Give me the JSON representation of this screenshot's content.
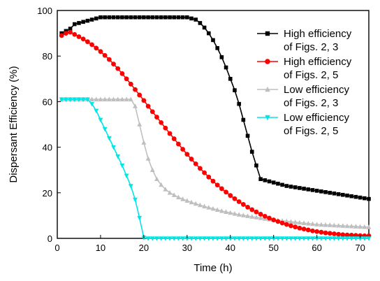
{
  "chart_data": {
    "type": "line",
    "xlabel": "Time (h)",
    "ylabel": "Dispersant Efficiency (%)",
    "xlim": [
      0,
      72
    ],
    "ylim": [
      0,
      100
    ],
    "x_ticks": [
      0,
      10,
      20,
      30,
      40,
      50,
      60,
      70
    ],
    "y_ticks": [
      0,
      20,
      40,
      60,
      80,
      100
    ],
    "grid": false,
    "legend_position": "top-right",
    "series": [
      {
        "name_lines": [
          "High efficiency",
          "of Figs. 2, 3"
        ],
        "color": "#000000",
        "marker": "square",
        "x": [
          1,
          2,
          3,
          4,
          5,
          6,
          7,
          8,
          9,
          10,
          11,
          12,
          13,
          14,
          15,
          16,
          17,
          18,
          19,
          20,
          21,
          22,
          23,
          24,
          25,
          26,
          27,
          28,
          29,
          30,
          31,
          32,
          33,
          34,
          35,
          36,
          37,
          38,
          39,
          40,
          41,
          42,
          43,
          44,
          45,
          46,
          47,
          48,
          49,
          50,
          51,
          52,
          53,
          54,
          55,
          56,
          57,
          58,
          59,
          60,
          61,
          62,
          63,
          64,
          65,
          66,
          67,
          68,
          69,
          70,
          71,
          72
        ],
        "y": [
          90,
          91,
          92,
          94,
          94.5,
          95,
          95.5,
          96,
          96.5,
          97,
          97,
          97,
          97,
          97,
          97,
          97,
          97,
          97,
          97,
          97,
          97,
          97,
          97,
          97,
          97,
          97,
          97,
          97,
          97,
          97,
          96.5,
          96,
          94.5,
          92.5,
          90,
          87,
          83.5,
          79.5,
          75,
          70,
          65,
          59,
          52,
          45,
          38,
          32,
          26,
          25.5,
          25,
          24.5,
          24,
          23.5,
          23,
          22.7,
          22.4,
          22.1,
          21.8,
          21.5,
          21.2,
          20.9,
          20.6,
          20.3,
          20,
          19.7,
          19.4,
          19.1,
          18.8,
          18.5,
          18.2,
          17.9,
          17.6,
          17.3
        ]
      },
      {
        "name_lines": [
          "High efficiency",
          "of Figs. 2, 5"
        ],
        "color": "#ff0000",
        "marker": "circle",
        "x": [
          1,
          2,
          3,
          4,
          5,
          6,
          7,
          8,
          9,
          10,
          11,
          12,
          13,
          14,
          15,
          16,
          17,
          18,
          19,
          20,
          21,
          22,
          23,
          24,
          25,
          26,
          27,
          28,
          29,
          30,
          31,
          32,
          33,
          34,
          35,
          36,
          37,
          38,
          39,
          40,
          41,
          42,
          43,
          44,
          45,
          46,
          47,
          48,
          49,
          50,
          51,
          52,
          53,
          54,
          55,
          56,
          57,
          58,
          59,
          60,
          61,
          62,
          63,
          64,
          65,
          66,
          67,
          68,
          69,
          70,
          71,
          72
        ],
        "y": [
          89,
          90,
          90.5,
          89.5,
          88.5,
          87.5,
          86.3,
          85,
          83.5,
          82,
          80.3,
          78.5,
          76.5,
          74.5,
          72.3,
          70,
          67.7,
          65.3,
          62.9,
          60.5,
          58,
          55.6,
          53.2,
          50.8,
          48.4,
          46,
          43.7,
          41.4,
          39.1,
          36.9,
          34.8,
          32.7,
          30.7,
          28.8,
          26.9,
          25.1,
          23.4,
          21.8,
          20.3,
          18.8,
          17.4,
          16.1,
          14.9,
          13.7,
          12.6,
          11.6,
          10.6,
          9.7,
          8.9,
          8.1,
          7.4,
          6.7,
          6.1,
          5.5,
          5,
          4.5,
          4.1,
          3.7,
          3.3,
          3,
          2.7,
          2.4,
          2.2,
          2,
          1.8,
          1.6,
          1.5,
          1.4,
          1.3,
          1.2,
          1.1,
          1.1
        ]
      },
      {
        "name_lines": [
          "Low efficiency",
          "of Figs. 2, 3"
        ],
        "color": "#bfbfbf",
        "marker": "triangle-up",
        "x": [
          1,
          2,
          3,
          4,
          5,
          6,
          7,
          8,
          9,
          10,
          11,
          12,
          13,
          14,
          15,
          16,
          17,
          18,
          19,
          20,
          21,
          22,
          23,
          24,
          25,
          26,
          27,
          28,
          29,
          30,
          31,
          32,
          33,
          34,
          35,
          36,
          37,
          38,
          39,
          40,
          41,
          42,
          43,
          44,
          45,
          46,
          47,
          48,
          49,
          50,
          51,
          52,
          53,
          54,
          55,
          56,
          57,
          58,
          59,
          60,
          61,
          62,
          63,
          64,
          65,
          66,
          67,
          68,
          69,
          70,
          71,
          72
        ],
        "y": [
          61,
          61,
          61,
          61,
          61,
          61,
          61,
          61,
          61,
          61,
          61,
          61,
          61,
          61,
          61,
          61,
          61,
          58,
          50,
          42,
          35,
          30,
          26,
          23.5,
          21.5,
          20,
          19,
          18,
          17.2,
          16.5,
          15.8,
          15.2,
          14.6,
          14,
          13.5,
          13,
          12.5,
          12,
          11.6,
          11.2,
          10.8,
          10.4,
          10.1,
          9.8,
          9.5,
          9.2,
          8.9,
          8.6,
          8.3,
          8.1,
          7.9,
          7.7,
          7.5,
          7.3,
          7.1,
          6.9,
          6.7,
          6.5,
          6.3,
          6.1,
          6,
          5.9,
          5.8,
          5.7,
          5.6,
          5.5,
          5.4,
          5.3,
          5.2,
          5.1,
          5,
          4.9
        ]
      },
      {
        "name_lines": [
          "Low efficiency",
          "of Figs. 2, 5"
        ],
        "color": "#00e5e5",
        "marker": "triangle-down",
        "x": [
          1,
          2,
          3,
          4,
          5,
          6,
          7,
          8,
          9,
          10,
          11,
          12,
          13,
          14,
          15,
          16,
          17,
          18,
          19,
          20,
          21,
          22,
          23,
          24,
          25,
          26,
          27,
          28,
          29,
          30,
          31,
          32,
          33,
          34,
          35,
          36,
          37,
          38,
          39,
          40,
          41,
          42,
          43,
          44,
          45,
          46,
          47,
          48,
          49,
          50,
          51,
          52,
          53,
          54,
          55,
          56,
          57,
          58,
          59,
          60,
          61,
          62,
          63,
          64,
          65,
          66,
          67,
          68,
          69,
          70,
          71,
          72
        ],
        "y": [
          61,
          61,
          61,
          61,
          61,
          61,
          61,
          59,
          56,
          52,
          48,
          44,
          40,
          36,
          32,
          27.5,
          23,
          17,
          9,
          0.3,
          0,
          0,
          0,
          0,
          0,
          0,
          0,
          0,
          0,
          0,
          0,
          0,
          0,
          0,
          0,
          0,
          0,
          0,
          0,
          0,
          0,
          0,
          0,
          0,
          0,
          0,
          0,
          0,
          0,
          0,
          0,
          0,
          0,
          0,
          0,
          0,
          0,
          0,
          0,
          0,
          0,
          0,
          0,
          0,
          0,
          0,
          0,
          0,
          0,
          0,
          0,
          0
        ]
      }
    ]
  }
}
